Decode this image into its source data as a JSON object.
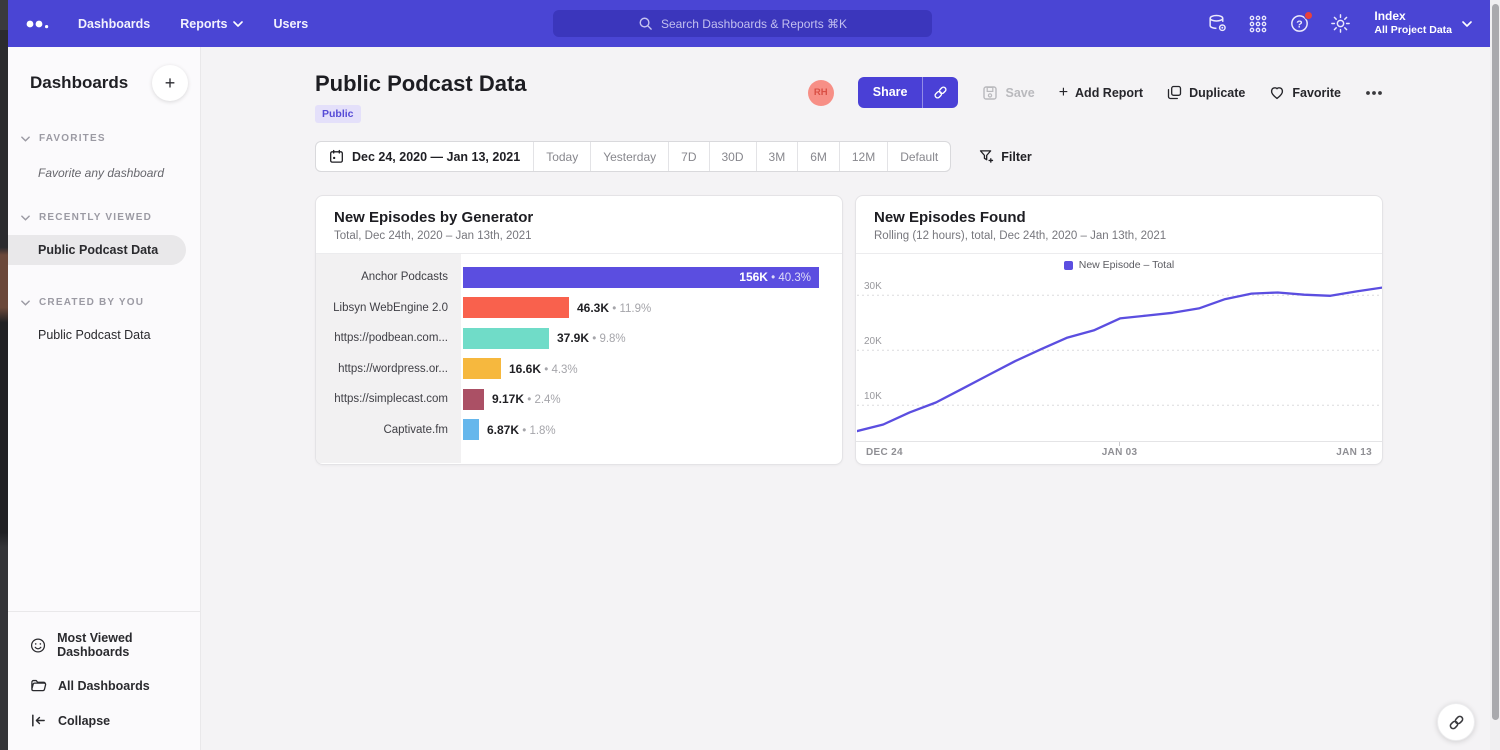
{
  "colors": {
    "nav_bg": "#4a45d4",
    "accent": "#4a40d6",
    "badge_bg": "#e4e0fa",
    "badge_text": "#554ad6",
    "help_badge": "#e8413c",
    "avatar_bg": "#f78f86"
  },
  "topnav": {
    "nav_items": [
      {
        "label": "Dashboards"
      },
      {
        "label": "Reports"
      },
      {
        "label": "Users"
      }
    ],
    "search_placeholder": "Search Dashboards & Reports ⌘K",
    "project_name": "Index",
    "project_scope": "All Project Data"
  },
  "sidebar": {
    "title": "Dashboards",
    "sections": [
      {
        "label": "FAVORITES",
        "empty_text": "Favorite any dashboard"
      },
      {
        "label": "RECENTLY VIEWED",
        "items": [
          {
            "label": "Public Podcast Data",
            "selected": true
          }
        ]
      },
      {
        "label": "CREATED BY YOU",
        "items": [
          {
            "label": "Public Podcast Data",
            "selected": false
          }
        ]
      }
    ],
    "footer_items": [
      {
        "label": "Most Viewed Dashboards"
      },
      {
        "label": "All Dashboards"
      },
      {
        "label": "Collapse"
      }
    ]
  },
  "page": {
    "title": "Public Podcast Data",
    "badge": "Public",
    "avatar_initials": "RH",
    "actions": {
      "share": "Share",
      "save": "Save",
      "add_report": "Add Report",
      "duplicate": "Duplicate",
      "favorite": "Favorite"
    }
  },
  "date_controls": {
    "range": "Dec 24, 2020 — Jan 13, 2021",
    "presets": [
      "Today",
      "Yesterday",
      "7D",
      "30D",
      "3M",
      "6M",
      "12M",
      "Default"
    ],
    "filter_label": "Filter"
  },
  "chart_data": [
    {
      "type": "bar",
      "orientation": "horizontal",
      "title": "New Episodes by Generator",
      "subtitle": "Total, Dec 24th, 2020 – Jan 13th, 2021",
      "categories": [
        "Anchor Podcasts",
        "Libsyn WebEngine 2.0",
        "https://podbean.com...",
        "https://wordpress.or...",
        "https://simplecast.com",
        "Captivate.fm"
      ],
      "values": [
        156000,
        46300,
        37900,
        16600,
        9170,
        6870
      ],
      "value_labels": [
        "156K",
        "46.3K",
        "37.9K",
        "16.6K",
        "9.17K",
        "6.87K"
      ],
      "pct_labels": [
        "40.3%",
        "11.9%",
        "9.8%",
        "4.3%",
        "2.4%",
        "1.8%"
      ],
      "colors": [
        "#5b4ee0",
        "#f9614d",
        "#70dcc8",
        "#f6b83e",
        "#ab5065",
        "#66b7ec"
      ],
      "value_separator": "•",
      "grid": false
    },
    {
      "type": "line",
      "title": "New Episodes Found",
      "subtitle": "Rolling (12 hours), total, Dec 24th, 2020 – Jan 13th, 2021",
      "legend": [
        "New Episode – Total"
      ],
      "line_color": "#5b4ee0",
      "x": [
        "Dec 24",
        "Dec 25",
        "Dec 26",
        "Dec 27",
        "Dec 28",
        "Dec 29",
        "Dec 30",
        "Dec 31",
        "Jan 01",
        "Jan 02",
        "Jan 03",
        "Jan 04",
        "Jan 05",
        "Jan 06",
        "Jan 07",
        "Jan 08",
        "Jan 09",
        "Jan 10",
        "Jan 11",
        "Jan 12",
        "Jan 13"
      ],
      "values": [
        5300,
        6500,
        8700,
        10500,
        13000,
        15500,
        18000,
        20200,
        22300,
        23600,
        25800,
        26300,
        26800,
        27600,
        29300,
        30300,
        30500,
        30100,
        29900,
        30700,
        31400
      ],
      "x_ticks": [
        "DEC 24",
        "JAN 03",
        "JAN 13"
      ],
      "y_ticks": [
        "10K",
        "20K",
        "30K"
      ],
      "y_tick_values": [
        10000,
        20000,
        30000
      ],
      "ylim": [
        3500,
        33500
      ],
      "grid": "horizontal-dashed",
      "legend_position": "top-center"
    }
  ]
}
